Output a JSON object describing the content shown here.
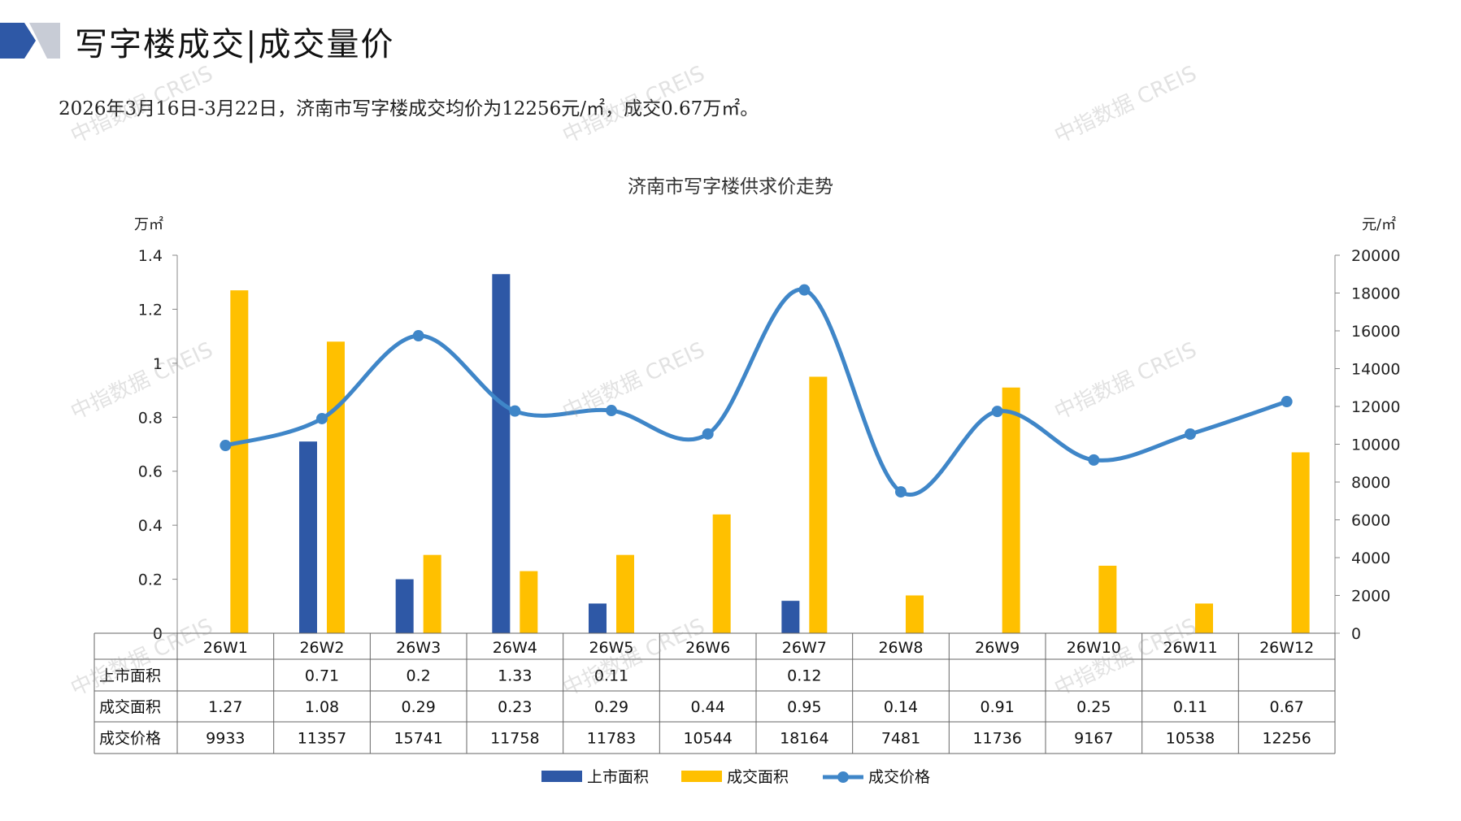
{
  "header": {
    "title": "写字楼成交|成交量价",
    "subtitle": "2026年3月16日-3月22日，济南市写字楼成交均价为12256元/㎡，成交0.67万㎡。"
  },
  "watermark": "中指数据 CREIS",
  "colors": {
    "listed": "#2E58A6",
    "traded": "#FFC000",
    "price": "#3F86C8",
    "logo_dark": "#2E58A6",
    "logo_light": "#C8CCD6"
  },
  "chart_data": {
    "type": "bar",
    "title": "济南市写字楼供求价走势",
    "categories": [
      "26W1",
      "26W2",
      "26W3",
      "26W4",
      "26W5",
      "26W6",
      "26W7",
      "26W8",
      "26W9",
      "26W10",
      "26W11",
      "26W12"
    ],
    "y_left": {
      "unit": "万㎡",
      "range": [
        0,
        1.4
      ],
      "ticks": [
        "0",
        "0.2",
        "0.4",
        "0.6",
        "0.8",
        "1",
        "1.2",
        "1.4"
      ]
    },
    "y_right": {
      "unit": "元/㎡",
      "range": [
        0,
        20000
      ],
      "ticks": [
        "0",
        "2000",
        "4000",
        "6000",
        "8000",
        "10000",
        "12000",
        "14000",
        "16000",
        "18000",
        "20000"
      ]
    },
    "series": [
      {
        "name": "上市面积",
        "type": "bar",
        "axis": "left",
        "values": [
          null,
          0.71,
          0.2,
          1.33,
          0.11,
          null,
          0.12,
          null,
          null,
          null,
          null,
          null
        ],
        "labels": [
          "",
          "0.71",
          "0.2",
          "1.33",
          "0.11",
          "",
          "0.12",
          "",
          "",
          "",
          "",
          ""
        ]
      },
      {
        "name": "成交面积",
        "type": "bar",
        "axis": "left",
        "values": [
          1.27,
          1.08,
          0.29,
          0.23,
          0.29,
          0.44,
          0.95,
          0.14,
          0.91,
          0.25,
          0.11,
          0.67
        ],
        "labels": [
          "1.27",
          "1.08",
          "0.29",
          "0.23",
          "0.29",
          "0.44",
          "0.95",
          "0.14",
          "0.91",
          "0.25",
          "0.11",
          "0.67"
        ]
      },
      {
        "name": "成交价格",
        "type": "line",
        "axis": "right",
        "values": [
          9933,
          11357,
          15741,
          11758,
          11783,
          10544,
          18164,
          7481,
          11736,
          9167,
          10538,
          12256
        ],
        "labels": [
          "9933",
          "11357",
          "15741",
          "11758",
          "11783",
          "10544",
          "18164",
          "7481",
          "11736",
          "9167",
          "10538",
          "12256"
        ]
      }
    ],
    "legend_position": "bottom",
    "grid": false
  }
}
